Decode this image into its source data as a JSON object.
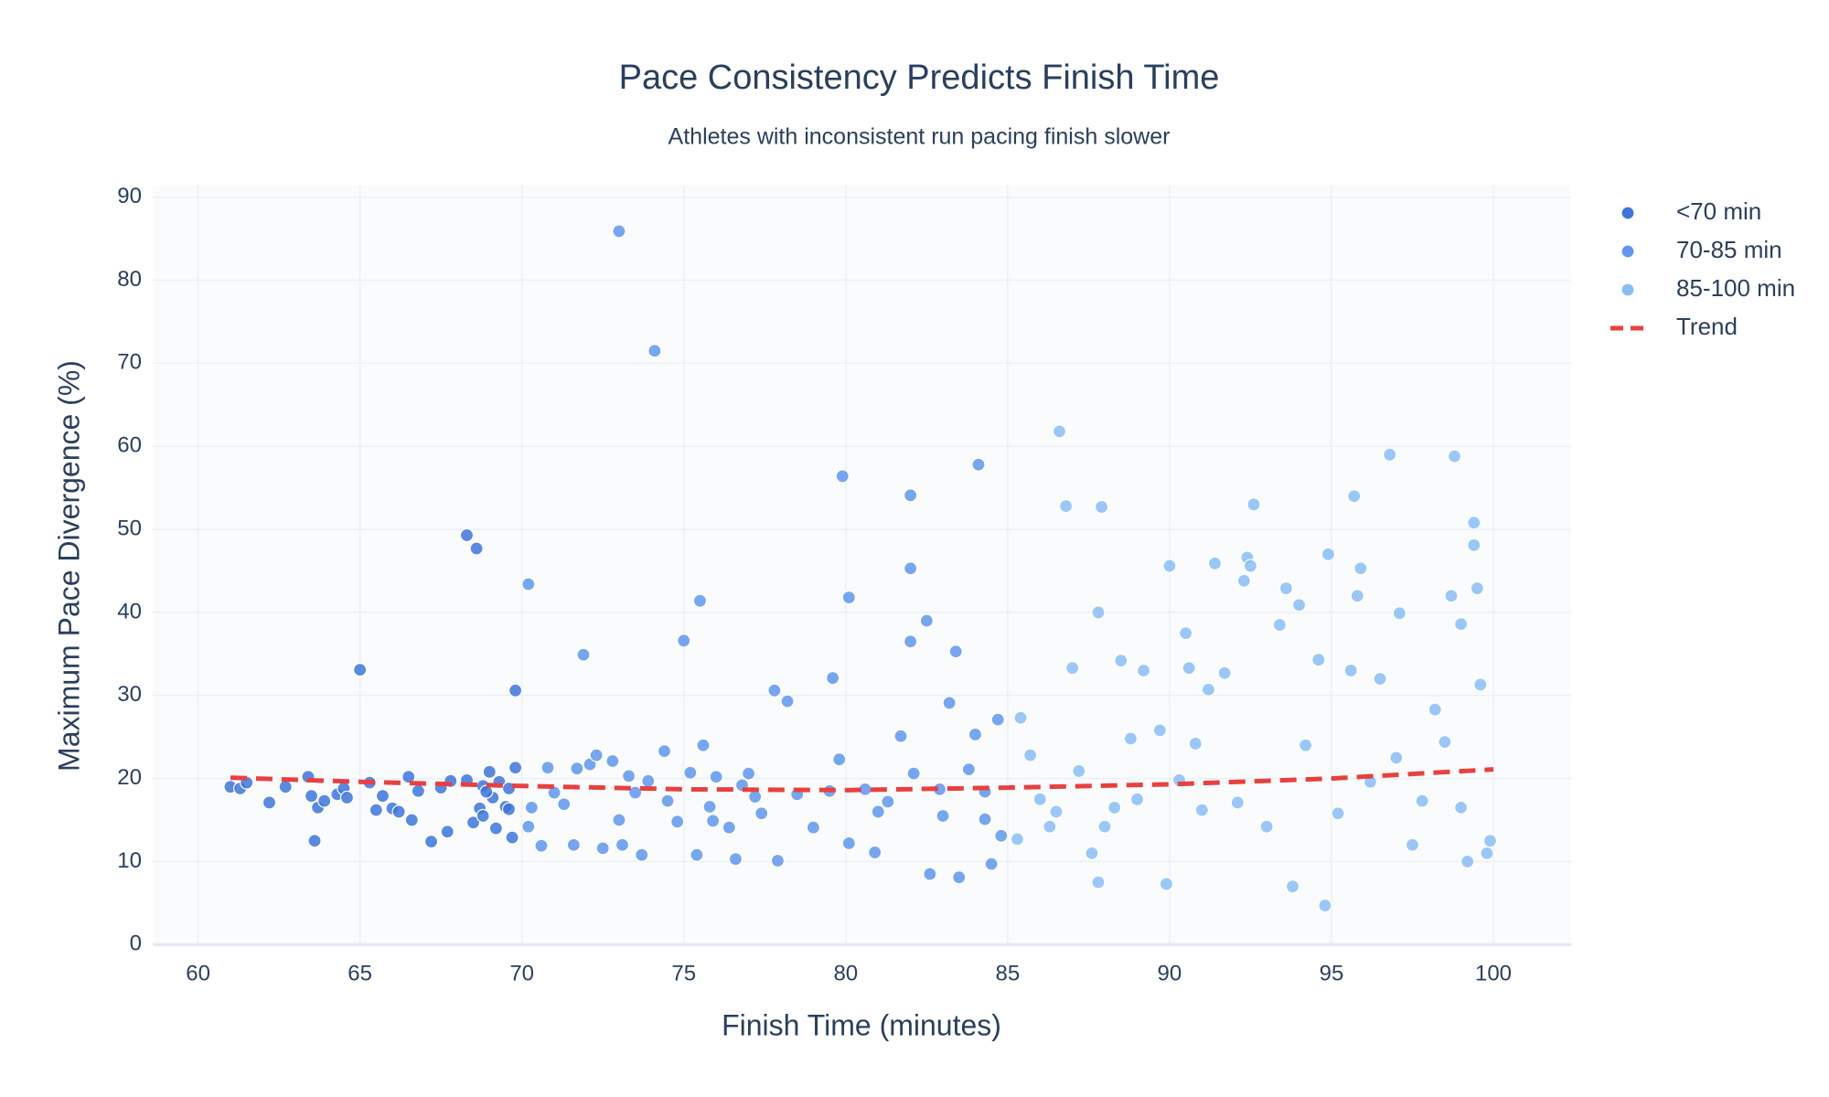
{
  "chart_data": {
    "type": "scatter",
    "title": "Pace Consistency Predicts Finish Time",
    "subtitle": "Athletes with inconsistent run pacing finish slower",
    "x_label": "Finish Time (minutes)",
    "y_label": "Maximum Pace Divergence (%)",
    "xlim": [
      58.6,
      102.4
    ],
    "ylim": [
      -0.3,
      91.4
    ],
    "xticks": [
      60,
      65,
      70,
      75,
      80,
      85,
      90,
      95,
      100
    ],
    "yticks": [
      0,
      10,
      20,
      30,
      40,
      50,
      60,
      70,
      80,
      90
    ],
    "grid": true,
    "legend": "right",
    "series": [
      {
        "name": "<70 min",
        "color": "#3d74dc",
        "x": [
          61,
          61.3,
          61.5,
          62.2,
          62.7,
          63.4,
          63.5,
          63.6,
          63.7,
          63.9,
          64.3,
          64.5,
          64.6,
          65,
          65.3,
          65.5,
          65.7,
          66,
          66.2,
          66.5,
          66.6,
          66.8,
          67.2,
          67.5,
          67.7,
          67.8,
          68.3,
          68.3,
          68.5,
          68.6,
          68.7,
          68.8,
          69,
          69.1,
          69.2,
          69.3,
          69.5,
          69.6,
          69.7,
          69.8,
          69.8,
          69.6,
          68.9,
          68.8
        ],
        "y": [
          19,
          18.8,
          19.5,
          17.1,
          19,
          20.2,
          17.9,
          12.5,
          16.5,
          17.3,
          18.1,
          18.8,
          17.7,
          33.1,
          19.5,
          16.2,
          17.9,
          16.4,
          16,
          20.2,
          15,
          18.5,
          12.4,
          18.9,
          13.6,
          19.7,
          19.8,
          49.3,
          14.7,
          47.7,
          16.4,
          19.1,
          20.8,
          17.7,
          14,
          19.6,
          16.6,
          16.3,
          12.9,
          30.6,
          21.3,
          18.8,
          18.4,
          15.5
        ]
      },
      {
        "name": "70-85 min",
        "color": "#5f96ef",
        "x": [
          70.2,
          70.2,
          70.3,
          70.6,
          70.8,
          71,
          71.3,
          71.6,
          71.7,
          71.9,
          72.1,
          72.3,
          72.5,
          72.8,
          73,
          73,
          73.1,
          73.3,
          73.7,
          73.9,
          74.1,
          74.4,
          74.5,
          75,
          75.2,
          75.4,
          75.5,
          75.6,
          75.8,
          76,
          76.4,
          76.6,
          77,
          77.4,
          77.8,
          77.9,
          78.2,
          78.5,
          79,
          79.6,
          79.8,
          79.9,
          80.1,
          80.1,
          80.6,
          80.9,
          81.3,
          81.7,
          82,
          82,
          82,
          82.1,
          82.5,
          82.6,
          82.9,
          83.2,
          83.4,
          83.5,
          83.8,
          84,
          84.1,
          84.3,
          84.5,
          84.7,
          84.8,
          84.3,
          83,
          81,
          79.5,
          77.2,
          76.8,
          75.9,
          74.8,
          73.5
        ],
        "y": [
          43.4,
          14.2,
          16.5,
          11.9,
          21.3,
          18.3,
          16.9,
          12,
          21.2,
          34.9,
          21.7,
          22.8,
          11.6,
          22.1,
          85.9,
          15,
          12,
          20.3,
          10.8,
          19.7,
          71.5,
          23.3,
          17.3,
          36.6,
          20.7,
          10.8,
          41.4,
          24,
          16.6,
          20.2,
          14.1,
          10.3,
          20.6,
          15.8,
          30.6,
          10.1,
          29.3,
          18.1,
          14.1,
          32.1,
          22.3,
          56.4,
          41.8,
          12.2,
          18.7,
          11.1,
          17.2,
          25.1,
          54.1,
          45.3,
          36.5,
          20.6,
          39,
          8.5,
          18.7,
          29.1,
          35.3,
          8.1,
          21.1,
          25.3,
          57.8,
          15.1,
          9.7,
          27.1,
          13.1,
          18.4,
          15.5,
          16,
          18.5,
          17.8,
          19.2,
          14.9,
          14.8,
          18.3
        ]
      },
      {
        "name": "85-100 min",
        "color": "#88bdf6",
        "x": [
          85.3,
          85.4,
          85.7,
          86,
          86.3,
          86.6,
          86.8,
          87,
          87.2,
          87.6,
          87.8,
          87.9,
          87.8,
          88.3,
          88.5,
          88.8,
          89.2,
          89.7,
          89.9,
          90,
          90.3,
          90.5,
          90.6,
          90.8,
          91.2,
          91.4,
          91.7,
          92.1,
          92.3,
          92.4,
          92.5,
          92.6,
          93.4,
          93.6,
          93.8,
          94,
          94.2,
          94.6,
          94.8,
          94.9,
          95.6,
          95.8,
          95.9,
          95.7,
          96.5,
          96.8,
          97.1,
          97,
          97.5,
          98.2,
          98.5,
          98.7,
          98.8,
          99,
          99.2,
          99.4,
          99.4,
          99.5,
          99.6,
          99.8,
          99.9,
          99,
          97.8,
          96.2,
          95.2,
          93,
          91,
          89,
          88,
          86.5
        ],
        "y": [
          12.7,
          27.3,
          22.8,
          17.5,
          14.2,
          61.8,
          52.8,
          33.3,
          20.9,
          11,
          40,
          52.7,
          7.5,
          16.5,
          34.2,
          24.8,
          33,
          25.8,
          7.3,
          45.6,
          19.8,
          37.5,
          33.3,
          24.2,
          30.7,
          45.9,
          32.7,
          17.1,
          43.8,
          46.6,
          45.6,
          53,
          38.5,
          42.9,
          7,
          40.9,
          24,
          34.3,
          4.7,
          47,
          33,
          42,
          45.3,
          54,
          32,
          59,
          39.9,
          22.5,
          12,
          28.3,
          24.4,
          42,
          58.8,
          38.6,
          10,
          50.8,
          48.1,
          42.9,
          31.3,
          11,
          12.5,
          16.5,
          17.3,
          19.6,
          15.8,
          14.2,
          16.2,
          17.5,
          14.2,
          16
        ]
      }
    ],
    "trend": {
      "name": "Trend",
      "color": "#e8403f",
      "x": [
        61,
        65,
        70,
        75,
        80,
        85,
        90,
        95,
        100
      ],
      "y": [
        20.1,
        19.6,
        19.1,
        18.7,
        18.6,
        18.9,
        19.3,
        20,
        21.1
      ]
    }
  }
}
